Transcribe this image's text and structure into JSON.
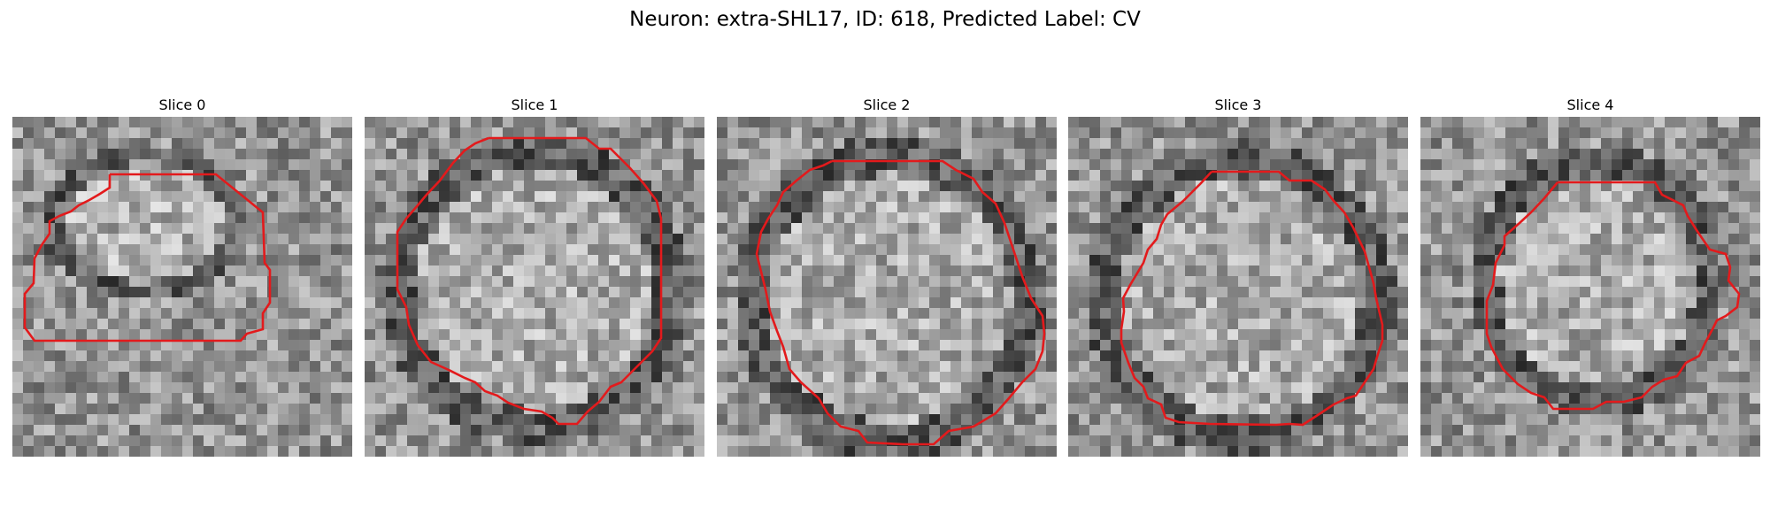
{
  "figure": {
    "title": "Neuron: extra-SHL17, ID: 618, Predicted Label: CV"
  },
  "panels": [
    {
      "title": "Slice 0"
    },
    {
      "title": "Slice 1"
    },
    {
      "title": "Slice 2"
    },
    {
      "title": "Slice 3"
    },
    {
      "title": "Slice 4"
    }
  ],
  "colors": {
    "contour": "#e31a1c",
    "background": "#ffffff"
  },
  "image_style": "grayscale noisy EM patch, 32x32 pixels, with red segmentation contour"
}
